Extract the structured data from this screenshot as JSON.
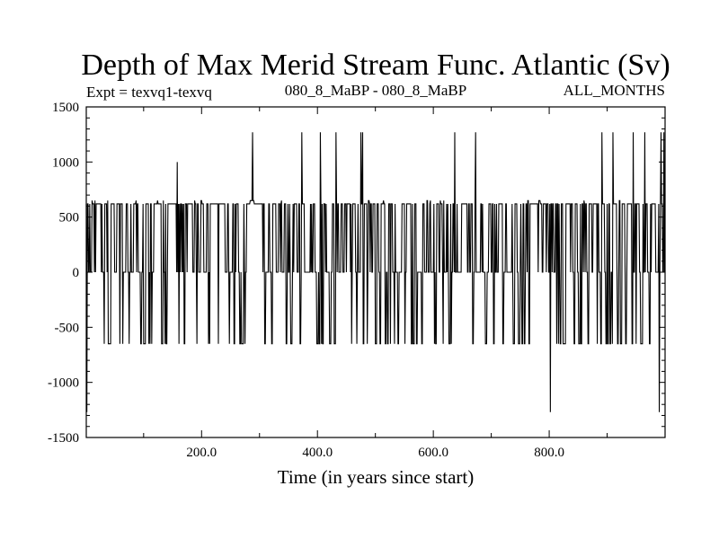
{
  "chart_data": {
    "type": "line",
    "title": "Depth of Max Merid Stream Func. Atlantic (Sv)",
    "subtitle_left": "Expt = texvq1-texvq",
    "subtitle_center": "080_8_MaBP - 080_8_MaBP",
    "subtitle_right": "ALL_MONTHS",
    "xlabel": "Time (in years since start)",
    "ylabel": "",
    "xlim": [
      1,
      1000
    ],
    "ylim": [
      -1500,
      1500
    ],
    "x_ticks": [
      200,
      400,
      600,
      800
    ],
    "x_tick_labels": [
      "200.0",
      "400.0",
      "600.0",
      "800.0"
    ],
    "y_ticks": [
      1500,
      1000,
      500,
      0,
      -500,
      -1000,
      -1500
    ],
    "y_tick_labels": [
      "1500",
      "1000",
      "500",
      "0",
      "-500",
      "-1000",
      "-1500"
    ],
    "series": [
      {
        "name": "texvq1-texvq",
        "color": "#000000",
        "levels": [
          -1270,
          -650,
          0,
          620,
          1000,
          1270
        ],
        "spikes": [
          {
            "x": 158,
            "value": 1000
          },
          {
            "x": 288,
            "value": 1270
          },
          {
            "x": 373,
            "value": 1270
          },
          {
            "x": 405,
            "value": 1270
          },
          {
            "x": 432,
            "value": 1270
          },
          {
            "x": 475,
            "value": 1270
          },
          {
            "x": 478,
            "value": 1270
          },
          {
            "x": 637,
            "value": 1270
          },
          {
            "x": 673,
            "value": 1270
          },
          {
            "x": 891,
            "value": 1270
          },
          {
            "x": 910,
            "value": 1270
          },
          {
            "x": 945,
            "value": 1270
          },
          {
            "x": 965,
            "value": 1270
          },
          {
            "x": 993,
            "value": 1270
          },
          {
            "x": 998,
            "value": 1270
          },
          {
            "x": 2,
            "value": -1270
          },
          {
            "x": 802,
            "value": -1270
          },
          {
            "x": 990,
            "value": -1270
          }
        ]
      }
    ]
  }
}
